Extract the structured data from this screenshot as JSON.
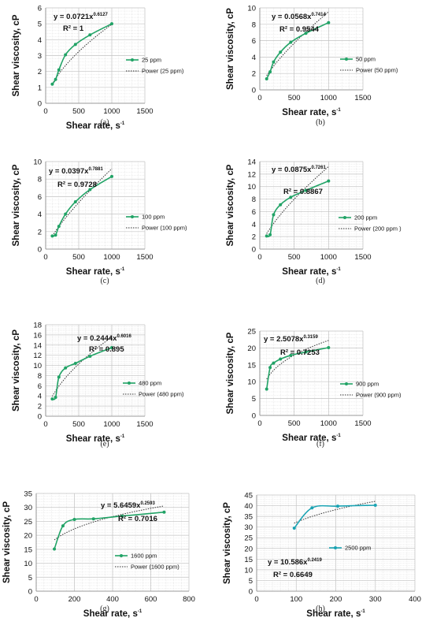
{
  "chart_data": [
    {
      "type": "scatter",
      "caption": "(a)",
      "xlabel": "Shear rate, s",
      "xlabel_sup": "-1",
      "ylabel": "Shear viscosity, cP",
      "xlim": [
        0,
        1500
      ],
      "ylim": [
        0,
        6
      ],
      "xticks": [
        0,
        500,
        1000,
        1500
      ],
      "yticks": [
        0,
        1,
        2,
        3,
        4,
        5,
        6
      ],
      "grid": true,
      "legend_position": "center-right",
      "equation": {
        "base": "y = 0.0721x",
        "exp": "0.6127",
        "r2": "R² = 1"
      },
      "series": [
        {
          "name": "25 ppm",
          "kind": "data",
          "color": "#21a366",
          "x": [
            100,
            150,
            200,
            300,
            450,
            670,
            1000
          ],
          "y": [
            1.2,
            1.5,
            2.1,
            3.05,
            3.7,
            4.3,
            5.0
          ]
        },
        {
          "name": "Power (25 ppm)",
          "kind": "trendline",
          "color": "#333333",
          "coef": 0.0721,
          "power": 0.6127,
          "from": 100,
          "to": 1000
        }
      ]
    },
    {
      "type": "scatter",
      "caption": "(b)",
      "xlabel": "Shear rate, s",
      "xlabel_sup": "-1",
      "ylabel": "Shear viscosity, cP",
      "xlim": [
        0,
        1500
      ],
      "ylim": [
        0,
        10
      ],
      "xticks": [
        0,
        500,
        1000,
        1500
      ],
      "yticks": [
        0,
        2,
        4,
        6,
        8,
        10
      ],
      "grid": true,
      "legend_position": "center-right",
      "equation": {
        "base": "y = 0.0568x",
        "exp": "0.7414",
        "r2": "R² = 0.9544"
      },
      "series": [
        {
          "name": "50 ppm",
          "kind": "data",
          "color": "#21a366",
          "x": [
            100,
            150,
            200,
            300,
            450,
            670,
            1000
          ],
          "y": [
            1.35,
            2.2,
            3.4,
            4.6,
            5.8,
            6.9,
            8.2
          ]
        },
        {
          "name": "Power (50 ppm)",
          "kind": "trendline",
          "color": "#333333",
          "coef": 0.0568,
          "power": 0.7414,
          "from": 100,
          "to": 1000
        }
      ]
    },
    {
      "type": "scatter",
      "caption": "(c)",
      "xlabel": "Shear rate, s",
      "xlabel_sup": "-1",
      "ylabel": "Shear viscosity, cP",
      "xlim": [
        0,
        1500
      ],
      "ylim": [
        0,
        10
      ],
      "xticks": [
        0,
        500,
        1000,
        1500
      ],
      "yticks": [
        0,
        2,
        4,
        6,
        8,
        10
      ],
      "grid": true,
      "legend_position": "center-right",
      "equation": {
        "base": "y = 0.0397x",
        "exp": "0.7881",
        "r2": "R² = 0.9728"
      },
      "series": [
        {
          "name": "100 ppm",
          "kind": "data",
          "color": "#21a366",
          "x": [
            100,
            150,
            200,
            300,
            450,
            670,
            1000
          ],
          "y": [
            1.5,
            1.6,
            2.6,
            4.0,
            5.4,
            6.8,
            8.3
          ]
        },
        {
          "name": "Power (100 ppm)",
          "kind": "trendline",
          "color": "#333333",
          "coef": 0.0397,
          "power": 0.7881,
          "from": 100,
          "to": 1000
        }
      ]
    },
    {
      "type": "scatter",
      "caption": "(d)",
      "xlabel": "Shear rate, s",
      "xlabel_sup": "-1",
      "ylabel": "Shear viscosity, cP",
      "xlim": [
        0,
        1500
      ],
      "ylim": [
        0,
        14
      ],
      "xticks": [
        0,
        500,
        1000,
        1500
      ],
      "yticks": [
        0,
        2,
        4,
        6,
        8,
        10,
        12,
        14
      ],
      "grid": true,
      "legend_position": "center-right",
      "equation": {
        "base": "y = 0.0875x",
        "exp": "0.7261",
        "r2": "R² = 0.8867"
      },
      "series": [
        {
          "name": "200 ppm",
          "kind": "data",
          "color": "#21a366",
          "x": [
            100,
            150,
            200,
            300,
            450,
            670,
            1000
          ],
          "y": [
            2.1,
            2.3,
            5.5,
            7.1,
            8.3,
            9.4,
            10.9
          ]
        },
        {
          "name": "Power (200 ppm )",
          "kind": "trendline",
          "color": "#333333",
          "coef": 0.0875,
          "power": 0.7261,
          "from": 100,
          "to": 1000
        }
      ]
    },
    {
      "type": "scatter",
      "caption": "(e)",
      "xlabel": "Shear rate, s",
      "xlabel_sup": "-1",
      "ylabel": "Shear viscosity, cP",
      "xlim": [
        0,
        1500
      ],
      "ylim": [
        0,
        18
      ],
      "xticks": [
        0,
        500,
        1000,
        1500
      ],
      "yticks": [
        0,
        2,
        4,
        6,
        8,
        10,
        12,
        14,
        16,
        18
      ],
      "grid": true,
      "legend_position": "center-right",
      "equation": {
        "base": "y = 0.2444x",
        "exp": "0.6016",
        "r2": "R² = 0.895"
      },
      "series": [
        {
          "name": "480 ppm",
          "kind": "data",
          "color": "#21a366",
          "x": [
            100,
            150,
            200,
            300,
            450,
            670,
            1000
          ],
          "y": [
            3.4,
            3.7,
            7.7,
            9.5,
            10.4,
            11.8,
            13.5
          ]
        },
        {
          "name": "Power (480 ppm)",
          "kind": "trendline",
          "color": "#333333",
          "coef": 0.2444,
          "power": 0.6016,
          "from": 100,
          "to": 1000
        }
      ]
    },
    {
      "type": "scatter",
      "caption": "(f)",
      "xlabel": "Shear rate, s",
      "xlabel_sup": "-1",
      "ylabel": "Shear viscosity, cP",
      "xlim": [
        0,
        1500
      ],
      "ylim": [
        0,
        25
      ],
      "xticks": [
        0,
        500,
        1000,
        1500
      ],
      "yticks": [
        0,
        5,
        10,
        15,
        20,
        25
      ],
      "grid": true,
      "legend_position": "center-right",
      "equation": {
        "base": "y = 2.5078x",
        "exp": "0.3159",
        "r2": "R² = 0.7253"
      },
      "series": [
        {
          "name": "900 ppm",
          "kind": "data",
          "color": "#21a366",
          "x": [
            100,
            150,
            200,
            300,
            450,
            670,
            1000
          ],
          "y": [
            7.8,
            14.2,
            15.5,
            16.7,
            17.8,
            18.8,
            20.1
          ]
        },
        {
          "name": "Power (900 ppm)",
          "kind": "trendline",
          "color": "#333333",
          "coef": 2.5078,
          "power": 0.3159,
          "from": 100,
          "to": 1000
        }
      ]
    },
    {
      "type": "scatter",
      "caption": "(g)",
      "xlabel": "Shear rate, s",
      "xlabel_sup": "-1",
      "ylabel": "Shear viscosity, cP",
      "xlim": [
        0,
        800
      ],
      "ylim": [
        0,
        35
      ],
      "xticks": [
        0,
        200,
        400,
        600,
        800
      ],
      "yticks": [
        0,
        5,
        10,
        15,
        20,
        25,
        30,
        35
      ],
      "grid": true,
      "legend_position": "center",
      "equation": {
        "base": "y = 5.6459x",
        "exp": "0.2593",
        "r2": "R² = 0.7016"
      },
      "series": [
        {
          "name": "1600 ppm",
          "kind": "data",
          "color": "#21a366",
          "x": [
            95,
            140,
            200,
            300,
            450,
            670
          ],
          "y": [
            15.1,
            23.4,
            25.7,
            25.9,
            26.9,
            28.3
          ]
        },
        {
          "name": "Power (1600 ppm)",
          "kind": "trendline",
          "color": "#333333",
          "coef": 5.6459,
          "power": 0.2593,
          "from": 95,
          "to": 670
        }
      ]
    },
    {
      "type": "scatter",
      "caption": "(h)",
      "xlabel": "Shear rate, s",
      "xlabel_sup": "-1",
      "ylabel": "Shear viscosity, cP",
      "xlim": [
        0,
        400
      ],
      "ylim": [
        0,
        45
      ],
      "xticks": [
        0,
        100,
        200,
        300,
        400
      ],
      "yticks": [
        0,
        5,
        10,
        15,
        20,
        25,
        30,
        35,
        40,
        45
      ],
      "grid": true,
      "legend_position": "center-right",
      "equation": {
        "base": "y = 10.586x",
        "exp": "0.2419",
        "r2": "R² = 0.6649"
      },
      "series": [
        {
          "name": "2500 ppm",
          "kind": "data",
          "color": "#1aa3b3",
          "x": [
            95,
            140,
            205,
            300
          ],
          "y": [
            29.5,
            39.0,
            39.8,
            40.2
          ]
        },
        {
          "name": "",
          "kind": "trendline",
          "color": "#333333",
          "coef": 10.586,
          "power": 0.2419,
          "from": 95,
          "to": 300
        }
      ]
    }
  ]
}
